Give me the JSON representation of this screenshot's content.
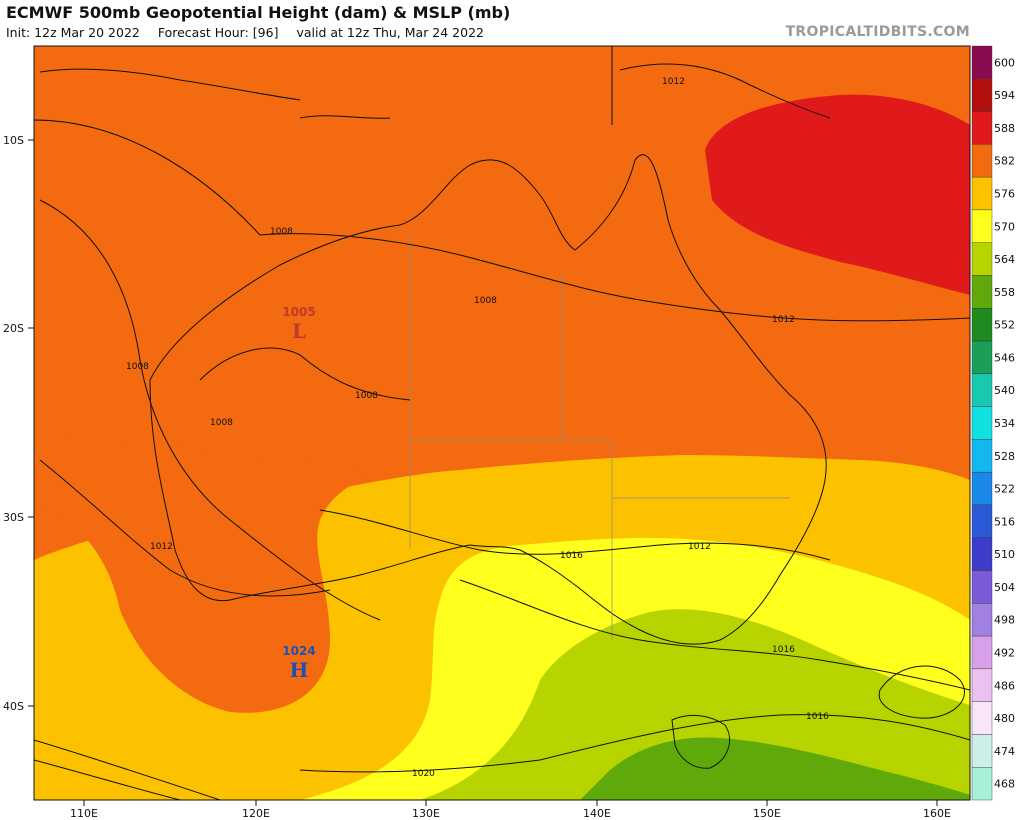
{
  "header": {
    "title": "ECMWF 500mb Geopotential Height (dam) & MSLP (mb)",
    "init": "Init: 12z Mar 20 2022",
    "forecast_hour": "Forecast Hour: [96]",
    "valid": "valid at 12z Thu, Mar 24 2022",
    "brand": "TROPICALTIDBITS.COM"
  },
  "axes": {
    "lat_labels": [
      "10S",
      "20S",
      "30S",
      "40S"
    ],
    "lon_labels": [
      "110E",
      "120E",
      "130E",
      "140E",
      "150E",
      "160E"
    ]
  },
  "pressure_centers": [
    {
      "type": "L",
      "value": "1005",
      "color": "#c0392b"
    },
    {
      "type": "H",
      "value": "1024",
      "color": "#1f4fb4"
    }
  ],
  "isobar_labels": [
    "1012",
    "1008",
    "1008",
    "1008",
    "1008",
    "1008",
    "1012",
    "1012",
    "1016",
    "1012",
    "1016",
    "1016",
    "1020"
  ],
  "colorbar": {
    "levels": [
      "600",
      "594",
      "588",
      "582",
      "576",
      "570",
      "564",
      "558",
      "552",
      "546",
      "540",
      "534",
      "528",
      "522",
      "516",
      "510",
      "504",
      "498",
      "492",
      "486",
      "480",
      "474",
      "468"
    ],
    "colors": [
      "#8b0a50",
      "#b40f0f",
      "#e01a1a",
      "#f36a10",
      "#fcc200",
      "#ffff1e",
      "#b8d400",
      "#5faa0a",
      "#1f8a1f",
      "#1a9e5a",
      "#18c8b0",
      "#10e0e0",
      "#14b8f0",
      "#1a88e8",
      "#2a5ad6",
      "#3c3cc8",
      "#7a5ad8",
      "#a080e0",
      "#d8a0e8",
      "#ecc0f0",
      "#f8e6f8",
      "#ccf0e8",
      "#a8f0d8"
    ]
  }
}
